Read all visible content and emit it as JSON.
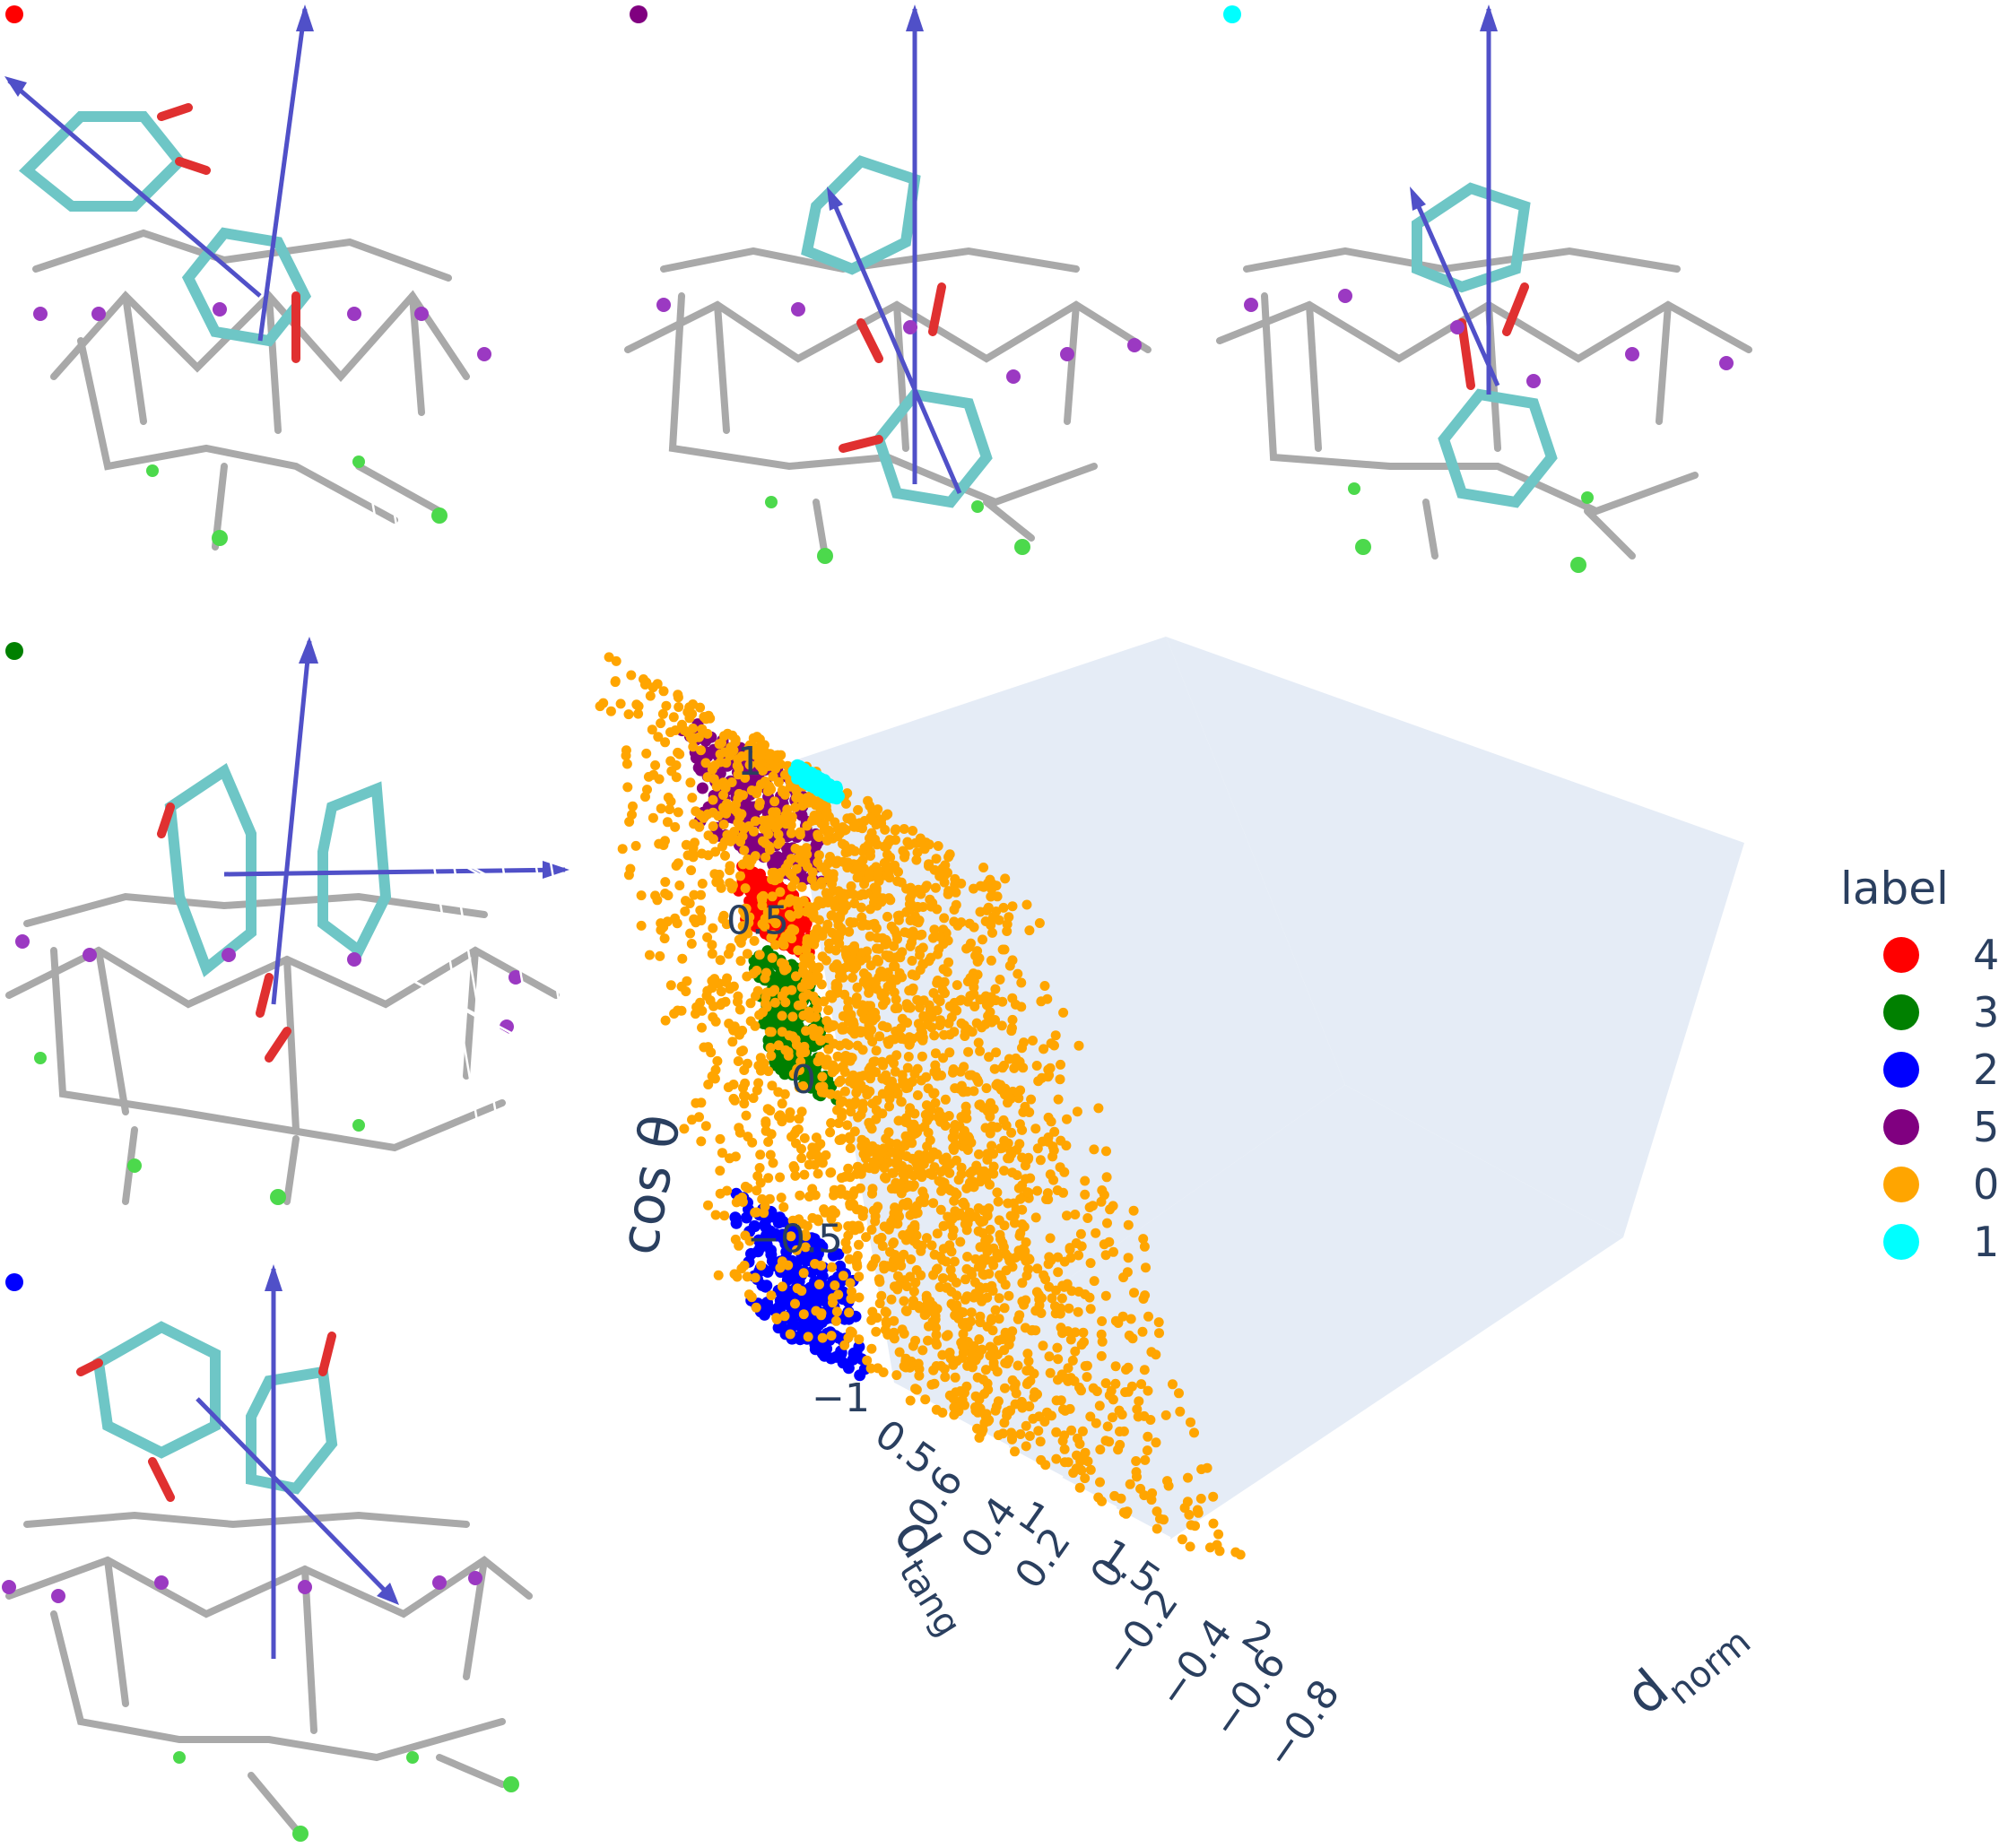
{
  "panels": [
    {
      "id": "panel-label-4",
      "color": "#ff0000"
    },
    {
      "id": "panel-label-5",
      "color": "#800080"
    },
    {
      "id": "panel-label-1",
      "color": "#00ffff"
    },
    {
      "id": "panel-label-3",
      "color": "#008000"
    },
    {
      "id": "panel-label-2",
      "color": "#0000ff"
    }
  ],
  "legend": {
    "title": "label",
    "items": [
      {
        "label": "4",
        "color": "#ff0000"
      },
      {
        "label": "3",
        "color": "#008000"
      },
      {
        "label": "2",
        "color": "#0000ff"
      },
      {
        "label": "5",
        "color": "#800080"
      },
      {
        "label": "0",
        "color": "#ffa500"
      },
      {
        "label": "1",
        "color": "#00ffff"
      }
    ]
  },
  "chart_data": {
    "type": "scatter",
    "subtype": "scatter3d",
    "axes": {
      "x": {
        "label_main": "d",
        "label_sub": "tang",
        "ticks": [
          "0.5",
          "1",
          "1.5",
          "2"
        ]
      },
      "y": {
        "label_main": "d",
        "label_sub": "norm",
        "ticks": [
          "0.6",
          "0.4",
          "0.2",
          "0",
          "−0.2",
          "−0.4",
          "−0.6",
          "−0.8"
        ]
      },
      "z": {
        "label": "cos θ",
        "ticks": [
          "1",
          "0.5",
          "0",
          "−0.5",
          "−1"
        ]
      }
    },
    "series": [
      {
        "name": "4",
        "color": "#ff0000",
        "x": [
          0.35,
          0.45
        ],
        "y": [
          -0.7,
          -0.5
        ],
        "z": [
          0.35,
          0.55
        ]
      },
      {
        "name": "3",
        "color": "#008000",
        "x": [
          0.35,
          0.45
        ],
        "y": [
          -0.7,
          -0.5
        ],
        "z": [
          -0.1,
          0.3
        ]
      },
      {
        "name": "2",
        "color": "#0000ff",
        "x": [
          0.3,
          0.5
        ],
        "y": [
          -0.6,
          -0.3
        ],
        "z": [
          -1.0,
          -0.6
        ]
      },
      {
        "name": "5",
        "color": "#800080",
        "x": [
          0.3,
          0.6
        ],
        "y": [
          -0.7,
          -0.4
        ],
        "z": [
          0.6,
          0.95
        ]
      },
      {
        "name": "0",
        "color": "#ffa500",
        "x": [
          0.6,
          2.1
        ],
        "y": [
          -0.8,
          0.4
        ],
        "z": [
          -1.0,
          1.0
        ]
      },
      {
        "name": "1",
        "color": "#00ffff",
        "x": [
          0.55,
          0.65
        ],
        "y": [
          -0.75,
          -0.65
        ],
        "z": [
          0.95,
          1.0
        ]
      }
    ]
  }
}
